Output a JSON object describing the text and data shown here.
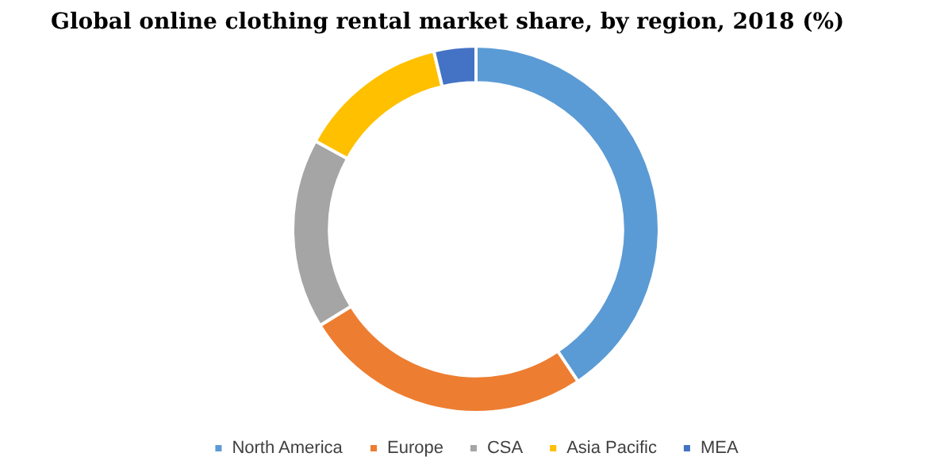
{
  "chart_data": {
    "type": "donut",
    "title": "Global online clothing rental market share, by region, 2018 (%)",
    "categories": [
      "North America",
      "Europe",
      "CSA",
      "Asia Pacific",
      "MEA"
    ],
    "values": [
      40.6,
      25.6,
      16.8,
      13.3,
      3.7
    ],
    "colors": [
      "#5b9bd5",
      "#ed7d31",
      "#a5a5a5",
      "#ffc000",
      "#4472c4"
    ],
    "legend": "bottom"
  }
}
